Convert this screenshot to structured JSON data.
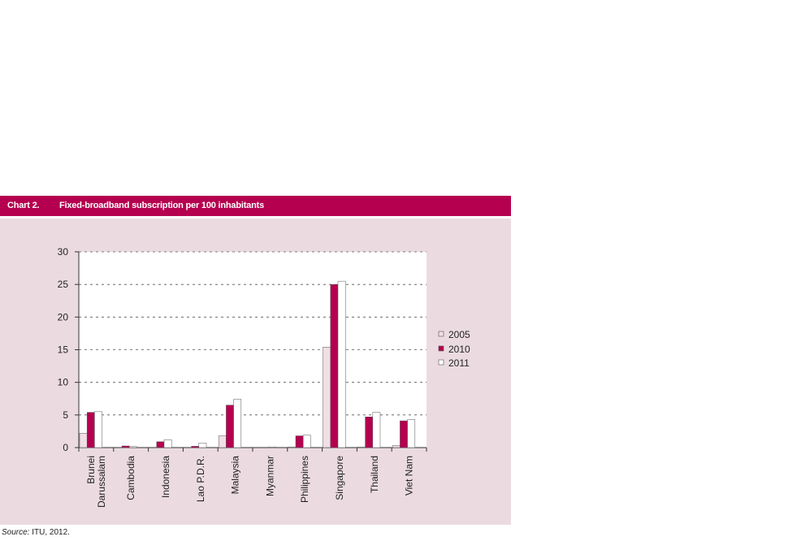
{
  "header": {
    "chart_number": "Chart 2.",
    "title": "Fixed-broadband subscription per 100 inhabitants"
  },
  "source": {
    "label": "Source:",
    "text": " ITU, 2012."
  },
  "colors": {
    "header_bg": "#b5004f",
    "panel_bg": "#ebdbe0",
    "series_2005": "#f0dfe4",
    "series_2010": "#b5004f",
    "series_2011": "#ffffff"
  },
  "chart_data": {
    "type": "bar",
    "title": "Fixed-broadband subscription per 100 inhabitants",
    "xlabel": "",
    "ylabel": "",
    "ylim": [
      0,
      30
    ],
    "yticks": [
      0,
      5,
      10,
      15,
      20,
      25,
      30
    ],
    "grid": "horizontal-dashed",
    "legend_position": "right",
    "categories": [
      [
        "Brunei",
        "Darussalam"
      ],
      [
        "Cambodia"
      ],
      [
        "Indonesia"
      ],
      [
        "Lao P.D.R."
      ],
      [
        "Malaysia"
      ],
      [
        "Myanmar"
      ],
      [
        "Philippines"
      ],
      [
        "Singapore"
      ],
      [
        "Thailand"
      ],
      [
        "Viet Nam"
      ]
    ],
    "series": [
      {
        "name": "2005",
        "color": "#f0dfe4",
        "values": [
          2.2,
          0.0,
          0.0,
          0.0,
          1.8,
          0.0,
          0.1,
          15.4,
          0.1,
          0.3
        ]
      },
      {
        "name": "2010",
        "color": "#b5004f",
        "values": [
          5.4,
          0.25,
          0.9,
          0.2,
          6.5,
          0.0,
          1.8,
          25.0,
          4.7,
          4.1
        ]
      },
      {
        "name": "2011",
        "color": "#ffffff",
        "values": [
          5.5,
          0.15,
          1.2,
          0.7,
          7.4,
          0.1,
          1.9,
          25.5,
          5.4,
          4.3
        ]
      }
    ]
  }
}
